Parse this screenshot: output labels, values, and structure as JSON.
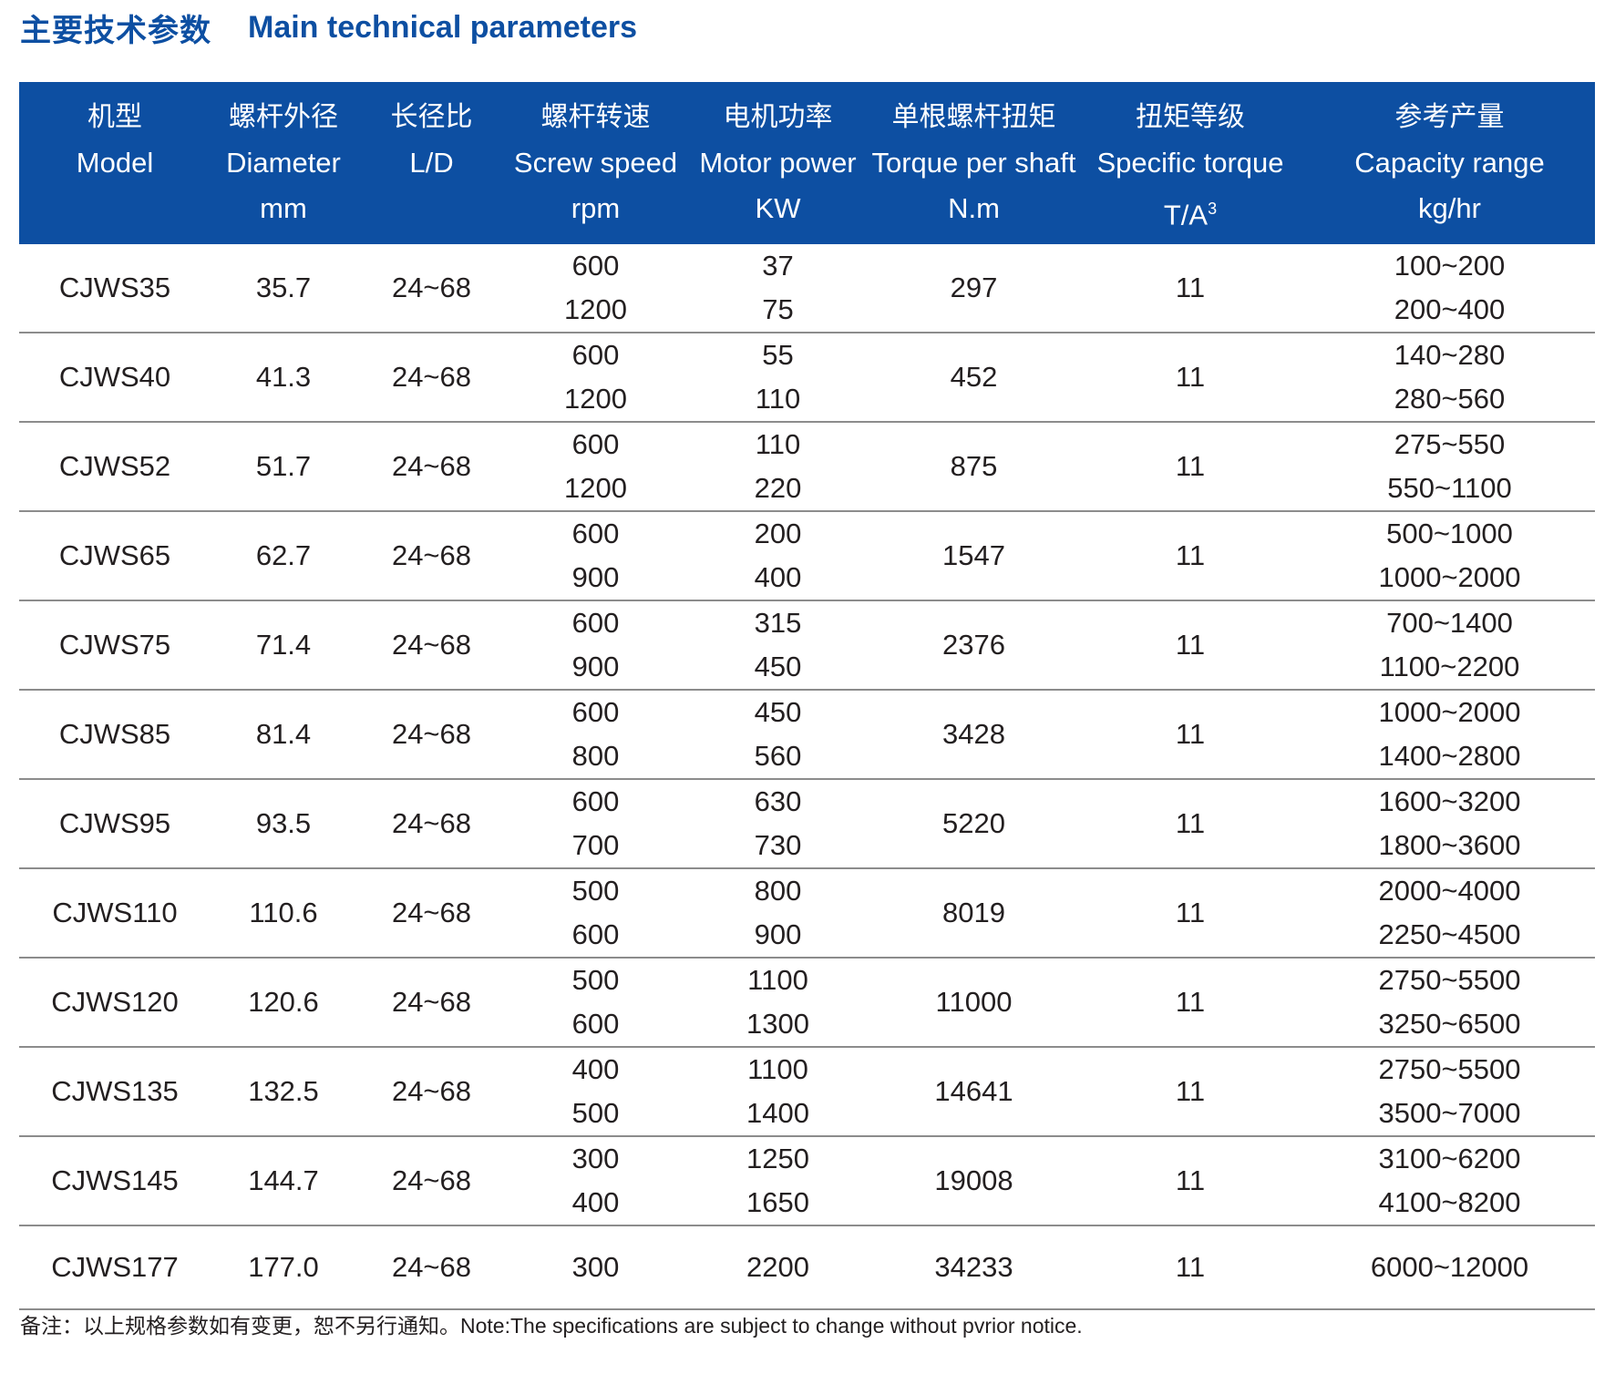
{
  "title": {
    "cn": "主要技术参数",
    "en": "Main technical parameters"
  },
  "headers": [
    {
      "cn": "机型",
      "en": "Model",
      "unit": ""
    },
    {
      "cn": "螺杆外径",
      "en": "Diameter",
      "unit": "mm"
    },
    {
      "cn": "长径比",
      "en": "L/D",
      "unit": ""
    },
    {
      "cn": "螺杆转速",
      "en": "Screw speed",
      "unit": "rpm"
    },
    {
      "cn": "电机功率",
      "en": "Motor power",
      "unit": "KW"
    },
    {
      "cn": "单根螺杆扭矩",
      "en": "Torque per shaft",
      "unit": "N.m"
    },
    {
      "cn": "扭矩等级",
      "en": "Specific torque",
      "unit": "T/A",
      "unit_sup": "3"
    },
    {
      "cn": "参考产量",
      "en": "Capacity range",
      "unit": "kg/hr"
    }
  ],
  "rows": [
    {
      "model": "CJWS35",
      "diameter": "35.7",
      "ld": "24~68",
      "speed": [
        "600",
        "1200"
      ],
      "power": [
        "37",
        "75"
      ],
      "torque": "297",
      "specific": "11",
      "capacity": [
        "100~200",
        "200~400"
      ]
    },
    {
      "model": "CJWS40",
      "diameter": "41.3",
      "ld": "24~68",
      "speed": [
        "600",
        "1200"
      ],
      "power": [
        "55",
        "110"
      ],
      "torque": "452",
      "specific": "11",
      "capacity": [
        "140~280",
        "280~560"
      ]
    },
    {
      "model": "CJWS52",
      "diameter": "51.7",
      "ld": "24~68",
      "speed": [
        "600",
        "1200"
      ],
      "power": [
        "110",
        "220"
      ],
      "torque": "875",
      "specific": "11",
      "capacity": [
        "275~550",
        "550~1100"
      ]
    },
    {
      "model": "CJWS65",
      "diameter": "62.7",
      "ld": "24~68",
      "speed": [
        "600",
        "900"
      ],
      "power": [
        "200",
        "400"
      ],
      "torque": "1547",
      "specific": "11",
      "capacity": [
        "500~1000",
        "1000~2000"
      ]
    },
    {
      "model": "CJWS75",
      "diameter": "71.4",
      "ld": "24~68",
      "speed": [
        "600",
        "900"
      ],
      "power": [
        "315",
        "450"
      ],
      "torque": "2376",
      "specific": "11",
      "capacity": [
        "700~1400",
        "1100~2200"
      ]
    },
    {
      "model": "CJWS85",
      "diameter": "81.4",
      "ld": "24~68",
      "speed": [
        "600",
        "800"
      ],
      "power": [
        "450",
        "560"
      ],
      "torque": "3428",
      "specific": "11",
      "capacity": [
        "1000~2000",
        "1400~2800"
      ]
    },
    {
      "model": "CJWS95",
      "diameter": "93.5",
      "ld": "24~68",
      "speed": [
        "600",
        "700"
      ],
      "power": [
        "630",
        "730"
      ],
      "torque": "5220",
      "specific": "11",
      "capacity": [
        "1600~3200",
        "1800~3600"
      ]
    },
    {
      "model": "CJWS110",
      "diameter": "110.6",
      "ld": "24~68",
      "speed": [
        "500",
        "600"
      ],
      "power": [
        "800",
        "900"
      ],
      "torque": "8019",
      "specific": "11",
      "capacity": [
        "2000~4000",
        "2250~4500"
      ]
    },
    {
      "model": "CJWS120",
      "diameter": "120.6",
      "ld": "24~68",
      "speed": [
        "500",
        "600"
      ],
      "power": [
        "1100",
        "1300"
      ],
      "torque": "11000",
      "specific": "11",
      "capacity": [
        "2750~5500",
        "3250~6500"
      ]
    },
    {
      "model": "CJWS135",
      "diameter": "132.5",
      "ld": "24~68",
      "speed": [
        "400",
        "500"
      ],
      "power": [
        "1100",
        "1400"
      ],
      "torque": "14641",
      "specific": "11",
      "capacity": [
        "2750~5500",
        "3500~7000"
      ]
    },
    {
      "model": "CJWS145",
      "diameter": "144.7",
      "ld": "24~68",
      "speed": [
        "300",
        "400"
      ],
      "power": [
        "1250",
        "1650"
      ],
      "torque": "19008",
      "specific": "11",
      "capacity": [
        "3100~6200",
        "4100~8200"
      ]
    },
    {
      "model": "CJWS177",
      "diameter": "177.0",
      "ld": "24~68",
      "speed": [
        "300"
      ],
      "power": [
        "2200"
      ],
      "torque": "34233",
      "specific": "11",
      "capacity": [
        "6000~12000"
      ]
    }
  ],
  "note": {
    "cn": "备注：以上规格参数如有变更，恕不另行通知。",
    "en": "Note:The specifications are subject to change without pvrior notice."
  },
  "colors": {
    "header_bg": "#0d4fa2",
    "title": "#0d4fa2",
    "rule": "#8c8c8c"
  }
}
